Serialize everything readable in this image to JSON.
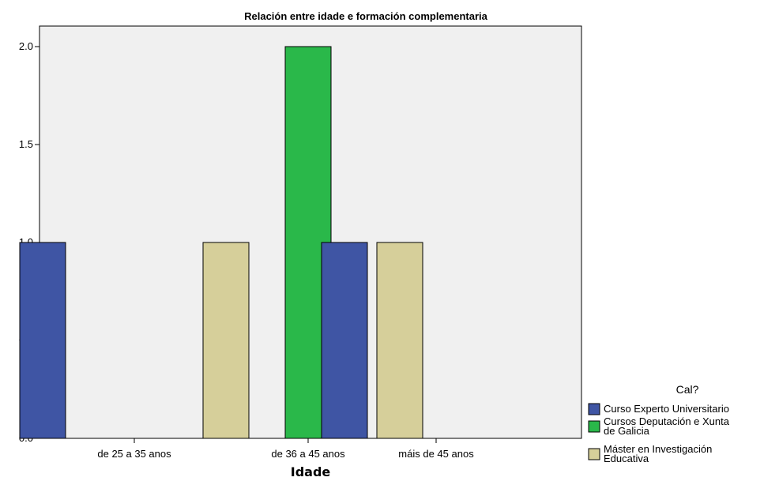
{
  "chart_data": {
    "type": "bar",
    "title": "Relación entre idade e formación complementaria",
    "xlabel": "Idade",
    "ylabel": "",
    "categories": [
      "de 25 a 35 anos",
      "de 36 a 45 anos",
      "máis de 45 anos"
    ],
    "series": [
      {
        "name": "Curso Experto Universitario",
        "values": [
          1,
          0,
          1
        ],
        "color": "#3f55a4"
      },
      {
        "name": "Cursos Deputación e Xunta de Galicia",
        "values": [
          0,
          2,
          0
        ],
        "color": "#2ab84a"
      },
      {
        "name": "Máster en Investigación Educativa",
        "values": [
          1,
          1,
          0
        ],
        "color": "#d6cf9a"
      }
    ],
    "ylim": [
      0,
      2.2
    ],
    "yticks": [
      "0.0",
      "0.5",
      "1.0",
      "1.5",
      "2.0"
    ],
    "legend": {
      "title": "Cal?",
      "placement": "bottom-right",
      "entries": [
        [
          "Curso Experto Universitario"
        ],
        [
          "Cursos Deputación e Xunta",
          "de Galicia"
        ],
        [
          "Máster en Investigación",
          "Educativa"
        ]
      ]
    },
    "plot_background": "#f0f0f0",
    "grid": false
  }
}
